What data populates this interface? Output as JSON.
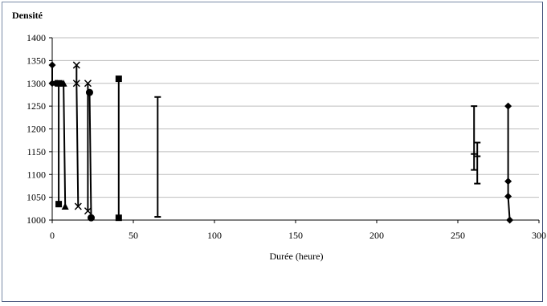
{
  "chart_data": {
    "type": "scatter",
    "ylabel": "Densité",
    "xlabel": "Durée (heure)",
    "xlim": [
      0,
      300
    ],
    "ylim": [
      1000,
      1400
    ],
    "x_ticks": [
      "0",
      "50",
      "100",
      "150",
      "200",
      "250",
      "300"
    ],
    "y_ticks": [
      "1000",
      "1050",
      "1100",
      "1150",
      "1200",
      "1250",
      "1300",
      "1350",
      "1400"
    ],
    "grid": "horizontal",
    "legend": "none",
    "series": [
      {
        "marker": "diamond",
        "points": [
          [
            0,
            1340
          ],
          [
            0,
            1300
          ],
          [
            2,
            1300
          ],
          [
            3,
            1300
          ]
        ]
      },
      {
        "marker": "square",
        "points": [
          [
            4,
            1300
          ],
          [
            4,
            1035
          ]
        ]
      },
      {
        "marker": "triangle",
        "points": [
          [
            6,
            1300
          ],
          [
            7,
            1300
          ],
          [
            8,
            1030
          ]
        ]
      },
      {
        "marker": "x",
        "points": [
          [
            15,
            1340
          ],
          [
            15,
            1300
          ],
          [
            16,
            1030
          ]
        ]
      },
      {
        "marker": "x",
        "points": [
          [
            22,
            1300
          ],
          [
            22,
            1020
          ]
        ]
      },
      {
        "marker": "circle",
        "points": [
          [
            23,
            1280
          ],
          [
            24,
            1005
          ]
        ]
      },
      {
        "marker": "square",
        "points": [
          [
            41,
            1310
          ],
          [
            41,
            1005
          ]
        ]
      },
      {
        "marker": "dash",
        "points": [
          [
            65,
            1270
          ],
          [
            65,
            1007
          ]
        ]
      },
      {
        "marker": "dash",
        "points": [
          [
            260,
            1250
          ],
          [
            260,
            1145
          ],
          [
            260,
            1110
          ]
        ]
      },
      {
        "marker": "dash",
        "points": [
          [
            262,
            1170
          ],
          [
            262,
            1140
          ],
          [
            262,
            1080
          ]
        ]
      },
      {
        "marker": "diamond",
        "points": [
          [
            281,
            1250
          ],
          [
            281,
            1085
          ],
          [
            281,
            1052
          ],
          [
            282,
            1000
          ]
        ]
      }
    ]
  }
}
